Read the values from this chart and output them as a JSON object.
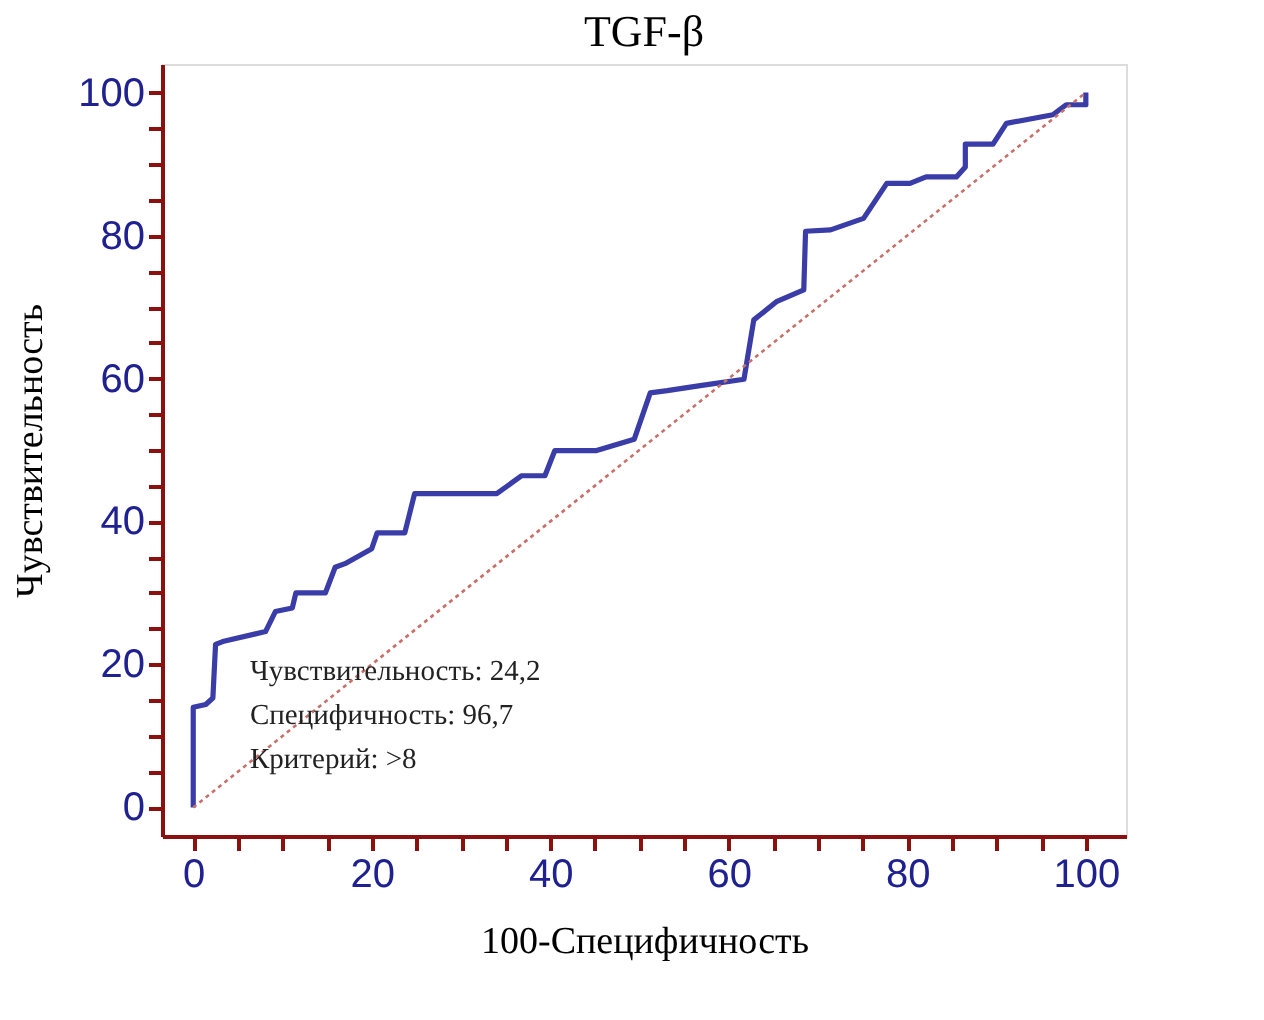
{
  "chart_data": {
    "type": "line",
    "title": "TGF-β",
    "xlabel": "100-Специфичность",
    "ylabel": "Чувствительность",
    "xlim": [
      -3.5,
      104.5
    ],
    "ylim": [
      -4,
      104
    ],
    "xticks": [
      0,
      {
        "value": 5,
        "label": null
      },
      {
        "value": 10,
        "label": null
      },
      {
        "value": 15,
        "label": null
      },
      20,
      {
        "value": 25,
        "label": null
      },
      {
        "value": 30,
        "label": null
      },
      {
        "value": 35,
        "label": null
      },
      40,
      {
        "value": 45,
        "label": null
      },
      {
        "value": 50,
        "label": null
      },
      {
        "value": 55,
        "label": null
      },
      60,
      {
        "value": 65,
        "label": null
      },
      {
        "value": 70,
        "label": null
      },
      {
        "value": 75,
        "label": null
      },
      80,
      {
        "value": 85,
        "label": null
      },
      {
        "value": 90,
        "label": null
      },
      {
        "value": 95,
        "label": null
      },
      100
    ],
    "yticks": [
      0,
      {
        "value": 5,
        "label": null
      },
      {
        "value": 10,
        "label": null
      },
      {
        "value": 15,
        "label": null
      },
      20,
      {
        "value": 25,
        "label": null
      },
      {
        "value": 30,
        "label": null
      },
      {
        "value": 35,
        "label": null
      },
      40,
      {
        "value": 45,
        "label": null
      },
      {
        "value": 50,
        "label": null
      },
      {
        "value": 55,
        "label": null
      },
      60,
      {
        "value": 65,
        "label": null
      },
      {
        "value": 70,
        "label": null
      },
      {
        "value": 75,
        "label": null
      },
      80,
      {
        "value": 85,
        "label": null
      },
      {
        "value": 90,
        "label": null
      },
      {
        "value": 95,
        "label": null
      },
      100
    ],
    "grid": false,
    "series": [
      {
        "color": "#3a3ca8",
        "x": [
          0,
          0,
          1.4,
          2.2,
          2.5,
          3.3,
          8.1,
          9.2,
          11.1,
          11.5,
          14.8,
          15.9,
          17,
          20,
          20.6,
          23.7,
          24.8,
          34,
          36.8,
          39.4,
          40.5,
          45.1,
          49.4,
          51.2,
          53.1,
          56.8,
          61.7,
          62.8,
          65.4,
          68.4,
          68.6,
          71.4,
          75.1,
          77.7,
          80.3,
          82.1,
          85.5,
          86.5,
          86.5,
          89.6,
          91.1,
          96.3,
          97.8,
          100,
          100
        ],
        "values": [
          0,
          14,
          14.4,
          15.3,
          22.8,
          23.2,
          24.6,
          27.4,
          27.9,
          30,
          30,
          33.6,
          34.1,
          36.2,
          38.4,
          38.4,
          43.9,
          43.9,
          46.4,
          46.4,
          49.9,
          49.9,
          51.5,
          58,
          58.3,
          59,
          59.9,
          68.2,
          70.8,
          72.4,
          80.6,
          80.8,
          82.4,
          87.3,
          87.3,
          88.2,
          88.2,
          89.6,
          92.8,
          92.8,
          95.7,
          96.9,
          98.3,
          98.3,
          100
        ]
      },
      {
        "type": "line",
        "color": "#c8706a",
        "line_style": "dotted",
        "x": [
          0,
          100
        ],
        "values": [
          0,
          100
        ]
      }
    ],
    "annotations": [
      "Чувствительность: 24,2",
      "Специфичность: 96,7",
      "Критерий: >8"
    ]
  }
}
